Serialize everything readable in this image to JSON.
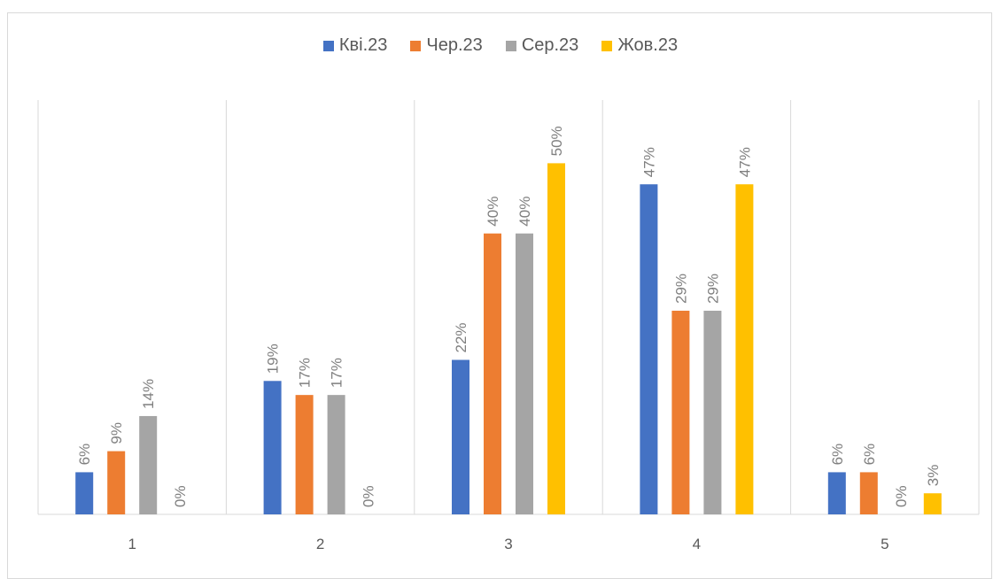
{
  "chart_data": {
    "type": "bar",
    "categories": [
      "1",
      "2",
      "3",
      "4",
      "5"
    ],
    "series": [
      {
        "name": "Кві.23",
        "color": "#4472c4",
        "values": [
          6,
          19,
          22,
          47,
          6
        ]
      },
      {
        "name": "Чер.23",
        "color": "#ed7d31",
        "values": [
          9,
          17,
          40,
          29,
          6
        ]
      },
      {
        "name": "Сер.23",
        "color": "#a5a5a5",
        "values": [
          14,
          17,
          40,
          29,
          0
        ]
      },
      {
        "name": "Жов.23",
        "color": "#ffc000",
        "values": [
          0,
          0,
          50,
          47,
          3
        ]
      }
    ],
    "data_labels": [
      [
        "6%",
        "19%",
        "22%",
        "47%",
        "6%"
      ],
      [
        "9%",
        "17%",
        "40%",
        "29%",
        "6%"
      ],
      [
        "14%",
        "17%",
        "40%",
        "29%",
        "0%"
      ],
      [
        "0%",
        "0%",
        "50%",
        "47%",
        "3%"
      ]
    ],
    "ylim": [
      0,
      59
    ],
    "value_unit": "%",
    "legend_position": "top",
    "grid": "vertical category separators"
  }
}
